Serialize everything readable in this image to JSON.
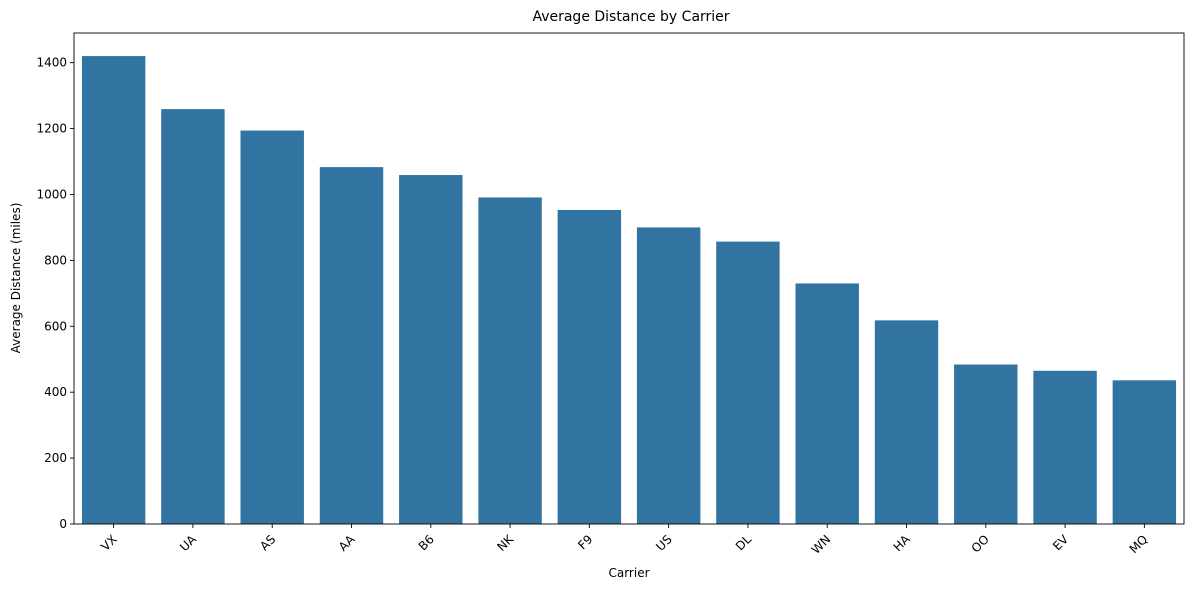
{
  "chart_data": {
    "type": "bar",
    "title": "Average Distance by Carrier",
    "xlabel": "Carrier",
    "ylabel": "Average Distance (miles)",
    "categories": [
      "VX",
      "UA",
      "AS",
      "AA",
      "B6",
      "NK",
      "F9",
      "US",
      "DL",
      "WN",
      "HA",
      "OO",
      "EV",
      "MQ"
    ],
    "values": [
      1420,
      1259,
      1194,
      1083,
      1059,
      991,
      953,
      900,
      857,
      730,
      618,
      484,
      465,
      436
    ],
    "ylim": [
      0,
      1490
    ],
    "yticks": [
      0,
      200,
      400,
      600,
      800,
      1000,
      1200,
      1400
    ],
    "bar_color": "#3274a1",
    "grid": false,
    "x_tick_rotation": "45 degrees"
  }
}
